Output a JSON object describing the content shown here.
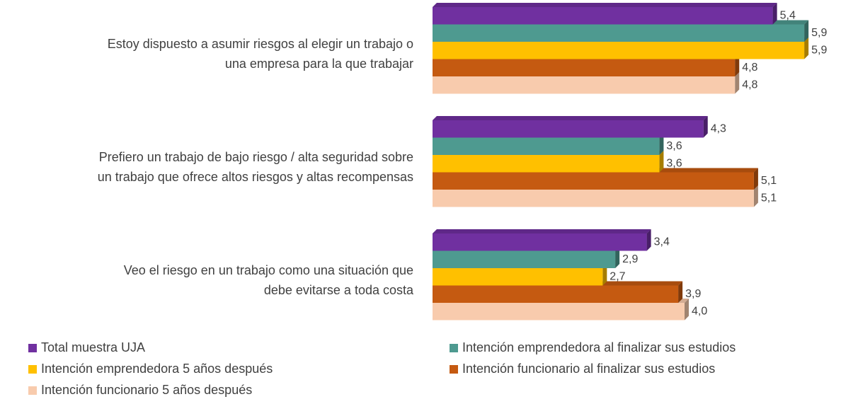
{
  "chart_data": {
    "type": "bar",
    "orientation": "horizontal",
    "categories": [
      "Estoy dispuesto a asumir riesgos al elegir un trabajo o\nuna empresa para la que trabajar",
      "Prefiero un trabajo de bajo riesgo / alta seguridad sobre\nun trabajo que ofrece altos riesgos y altas recompensas",
      "Veo el riesgo en un trabajo como una situación que\ndebe evitarse a toda costa"
    ],
    "series": [
      {
        "name": "Total muestra UJA",
        "color": "#7030a0",
        "values": [
          5.4,
          4.3,
          3.4
        ],
        "value_labels": [
          "5,4",
          "4,3",
          "3,4"
        ]
      },
      {
        "name": "Intención emprendedora al finalizar sus estudios",
        "color": "#4e9a90",
        "values": [
          5.9,
          3.6,
          2.9
        ],
        "value_labels": [
          "5,9",
          "3,6",
          "2,9"
        ]
      },
      {
        "name": "Intención emprendedora 5 años después",
        "color": "#ffc000",
        "values": [
          5.9,
          3.6,
          2.7
        ],
        "value_labels": [
          "5,9",
          "3,6",
          "2,7"
        ]
      },
      {
        "name": "Intención funcionario al finalizar sus estudios",
        "color": "#c55a11",
        "values": [
          4.8,
          5.1,
          3.9
        ],
        "value_labels": [
          "4,8",
          "5,1",
          "3,9"
        ]
      },
      {
        "name": "Intención funcionario 5 años después",
        "color": "#f8cbad",
        "values": [
          4.8,
          5.1,
          4.0
        ],
        "value_labels": [
          "4,8",
          "5,1",
          "4,0"
        ]
      }
    ],
    "legend": "bottom"
  }
}
